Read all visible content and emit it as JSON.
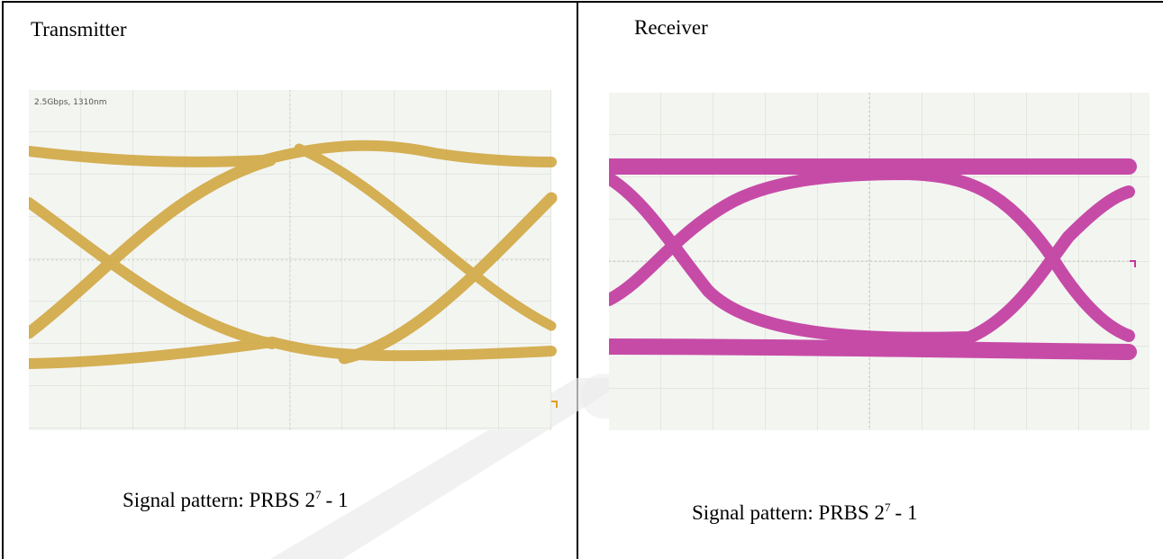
{
  "table": {
    "columns": [
      {
        "header": "Transmitter",
        "scope_label": "2.5Gbps, 1310nm",
        "caption": {
          "text": "Signal pattern: PRBS 2",
          "superscript": "7",
          "suffix": "- 1"
        }
      },
      {
        "header": "Receiver",
        "caption": {
          "text": "Signal pattern: PRBS 2",
          "superscript": "7",
          "suffix": "- 1"
        }
      }
    ]
  }
}
